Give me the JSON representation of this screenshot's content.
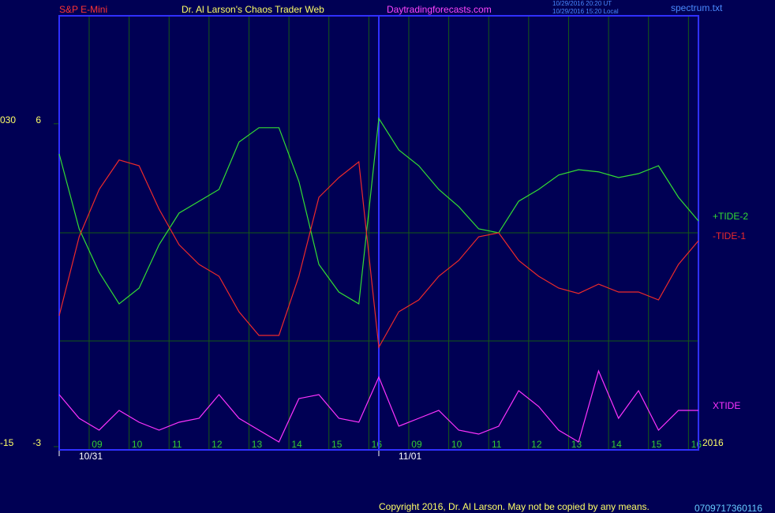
{
  "chart_data": {
    "type": "line",
    "symbol": "S&P E-Mini",
    "title": "Dr. Al Larson's Chaos Trader Web",
    "site": "Daytradingforecasts.com",
    "timestamps": [
      "10/29/2016 20:20 UT",
      "10/29/2016 15:20 Local"
    ],
    "file": "spectrum.txt",
    "year": "2016",
    "copyright": "Copyright 2016, Dr. Al Larson. May not be copied by any means.",
    "code": "0709717360116",
    "x": [
      0,
      1,
      2,
      3,
      4,
      5,
      6,
      7,
      8,
      9,
      10,
      11,
      12,
      13,
      14,
      15,
      16,
      17,
      18,
      19,
      20,
      21,
      22,
      23,
      24,
      25,
      26,
      27,
      28,
      29,
      30,
      31,
      32
    ],
    "xlim": [
      0,
      32
    ],
    "xticks": [
      {
        "value": 1.5,
        "label": "09"
      },
      {
        "value": 3.5,
        "label": "10"
      },
      {
        "value": 5.5,
        "label": "11"
      },
      {
        "value": 7.5,
        "label": "12"
      },
      {
        "value": 9.5,
        "label": "13"
      },
      {
        "value": 11.5,
        "label": "14"
      },
      {
        "value": 13.5,
        "label": "15"
      },
      {
        "value": 15.5,
        "label": "16"
      },
      {
        "value": 17.5,
        "label": "09"
      },
      {
        "value": 19.5,
        "label": "10"
      },
      {
        "value": 21.5,
        "label": "11"
      },
      {
        "value": 23.5,
        "label": "12"
      },
      {
        "value": 25.5,
        "label": "13"
      },
      {
        "value": 27.5,
        "label": "14"
      },
      {
        "value": 29.5,
        "label": "15"
      },
      {
        "value": 31.5,
        "label": "16"
      }
    ],
    "date_ticks": [
      {
        "value": 0,
        "label": "10/31"
      },
      {
        "value": 16,
        "label": "11/01"
      }
    ],
    "ylim": [
      -3.09,
      9.01
    ],
    "yticks": [
      6,
      -3
    ],
    "y2lim": [
      -15.44,
      45.07
    ],
    "y2ticks": [
      {
        "value": 30,
        "label": "030"
      },
      -15
    ],
    "grid": true,
    "series": [
      {
        "name": "+TIDE-2",
        "color": "#33dd33",
        "values": [
          5.16,
          3.07,
          1.86,
          0.98,
          1.42,
          2.63,
          3.51,
          3.84,
          4.17,
          5.49,
          5.89,
          5.89,
          4.39,
          2.08,
          1.31,
          0.98,
          6.15,
          5.27,
          4.83,
          4.17,
          3.69,
          3.07,
          2.96,
          3.84,
          4.17,
          4.57,
          4.72,
          4.66,
          4.5,
          4.61,
          4.83,
          3.95,
          3.29
        ]
      },
      {
        "name": "-TIDE-1",
        "color": "#ee2a2a",
        "values": [
          0.65,
          2.85,
          4.17,
          4.99,
          4.83,
          3.62,
          2.63,
          2.08,
          1.75,
          0.76,
          0.1,
          0.1,
          1.75,
          3.95,
          4.5,
          4.94,
          -0.23,
          0.76,
          1.09,
          1.75,
          2.19,
          2.85,
          2.96,
          2.19,
          1.75,
          1.42,
          1.27,
          1.53,
          1.31,
          1.31,
          1.09,
          2.08,
          2.74
        ]
      },
      {
        "name": "XTIDE",
        "color": "#ff33ff",
        "values": [
          -1.55,
          -2.21,
          -2.54,
          -1.99,
          -2.32,
          -2.54,
          -2.32,
          -2.21,
          -1.55,
          -2.21,
          -2.54,
          -2.87,
          -1.66,
          -1.55,
          -2.21,
          -2.32,
          -1.06,
          -2.43,
          -2.21,
          -1.99,
          -2.54,
          -2.65,
          -2.43,
          -1.44,
          -1.88,
          -2.54,
          -2.87,
          -0.89,
          -2.21,
          -1.44,
          -2.54,
          -1.99,
          -1.99
        ]
      }
    ]
  }
}
